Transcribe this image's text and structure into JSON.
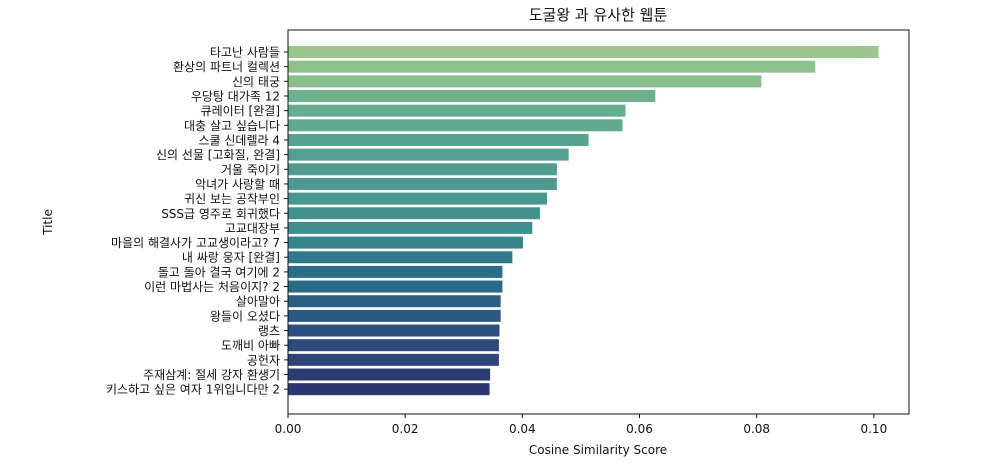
{
  "chart_data": {
    "type": "bar",
    "orientation": "horizontal",
    "title": "도굴왕 과 유사한 웹툰",
    "xlabel": "Cosine Similarity Score",
    "ylabel": "Title",
    "xlim": [
      0,
      0.106
    ],
    "xticks": [
      "0.00",
      "0.02",
      "0.04",
      "0.06",
      "0.08",
      "0.10"
    ],
    "xtick_values": [
      0,
      0.02,
      0.04,
      0.06,
      0.08,
      0.1
    ],
    "grid": false,
    "categories": [
      "타고난 사람들",
      "환상의 파트너 컬렉션",
      "신의 태궁",
      "우당탕 대가족 12",
      "큐레이터 [완결]",
      "대충 살고 싶습니다",
      "스쿨 신데렐라 4",
      "신의 선물 [고화질, 완결]",
      "거울 죽이기",
      "악녀가 사랑할 때",
      "귀신 보는 공작부인",
      "SSS급 영주로 회귀했다",
      "고교대장부",
      "마을의 해결사가 고교생이라고? 7",
      "내 싸랑 웅자 [완결]",
      "돌고 돌아 결국 여기에 2",
      "이런 마법사는 처음이지? 2",
      "살아말아",
      "왕들이 오셨다",
      "랭츠",
      "도깨비 아빠",
      "공헌자",
      "주재삼계: 절세 강자 환생기",
      "키스하고 싶은 여자 1위입니다만 2"
    ],
    "values": [
      0.1008,
      0.09,
      0.0808,
      0.0627,
      0.0576,
      0.0571,
      0.0513,
      0.0479,
      0.0459,
      0.0459,
      0.0442,
      0.043,
      0.0417,
      0.0401,
      0.0383,
      0.0366,
      0.0366,
      0.0363,
      0.0363,
      0.0361,
      0.036,
      0.036,
      0.0345,
      0.0344
    ],
    "colors": [
      "#9ac78e",
      "#8ec28b",
      "#86bf8b",
      "#6eb18d",
      "#66ad8e",
      "#62aa8e",
      "#58a38f",
      "#539f8f",
      "#4f9c8f",
      "#4b9990",
      "#479690",
      "#439290",
      "#3f8e90",
      "#37848d",
      "#2e7a8c",
      "#2a6e89",
      "#286a88",
      "#2a5e84",
      "#2a5a82",
      "#2b4f7e",
      "#2c4a7b",
      "#2d4578",
      "#2c3b72",
      "#2b356e"
    ]
  }
}
